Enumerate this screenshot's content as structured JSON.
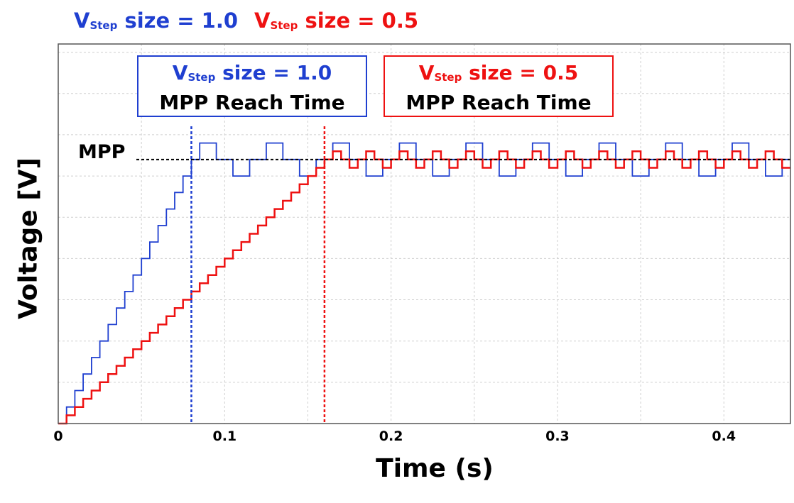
{
  "legend": [
    {
      "v": "V",
      "sub": "Step",
      "rest": " size = 1.0",
      "color": "#1f3fd0"
    },
    {
      "v": "V",
      "sub": "Step",
      "rest": " size = 0.5",
      "color": "#ee1111"
    }
  ],
  "boxes": [
    {
      "v": "V",
      "sub": "Step",
      "rest": " size = 1.0",
      "line2": "MPP Reach Time",
      "color": "#1f3fd0"
    },
    {
      "v": "V",
      "sub": "Step",
      "rest": " size = 0.5",
      "line2": "MPP Reach Time",
      "color": "#ee1111"
    }
  ],
  "mpp_label": "MPP",
  "chart_data": {
    "type": "line",
    "xlabel": "Time (s)",
    "ylabel": "Voltage [V]",
    "xlim": [
      0,
      0.44
    ],
    "ylim": [
      0,
      23
    ],
    "xticks": [
      0,
      0.1,
      0.2,
      0.3,
      0.4
    ],
    "xtick_labels": [
      "0",
      "0.1",
      "0.2",
      "0.3",
      "0.4"
    ],
    "yticks_shown": false,
    "grid": true,
    "mpp_value": 16,
    "mpp_reach_time": [
      0.08,
      0.16
    ],
    "series": [
      {
        "color": "#1f3fd0",
        "step_size": 1.0,
        "period": 0.005,
        "ramp_start": 0.005,
        "start_value": 0,
        "mpp_value": 16,
        "oscillation": [
          16,
          17,
          16,
          15
        ],
        "osc_period": 0.02
      },
      {
        "color": "#ee1111",
        "step_size": 0.5,
        "period": 0.005,
        "ramp_start": 0.005,
        "start_value": 0,
        "mpp_value": 16,
        "oscillation": [
          16,
          16.5,
          16,
          15.5
        ],
        "osc_period": 0.01
      }
    ]
  }
}
